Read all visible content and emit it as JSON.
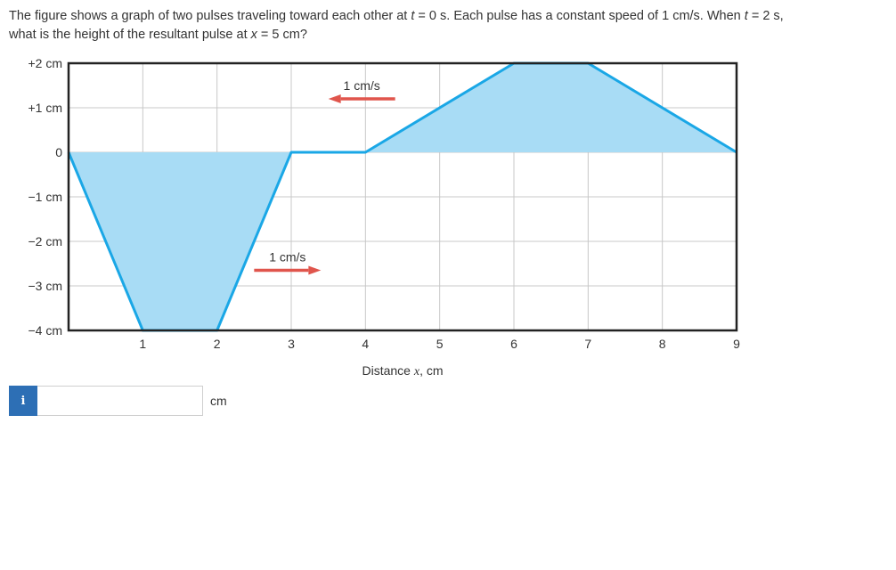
{
  "question": {
    "part1": "The figure shows a graph of two pulses traveling toward each other at ",
    "var_t1": "t",
    "part2": " = 0 s. Each pulse has a constant speed of 1 cm/s. When ",
    "var_t2": "t",
    "part3": " = 2 s,",
    "part4": "what is the height of the resultant pulse at ",
    "var_x": "x",
    "part5": " = 5 cm?"
  },
  "chart_data": {
    "type": "area",
    "xlim": [
      0,
      9
    ],
    "ylim": [
      -4,
      2
    ],
    "x_ticks": [
      1,
      2,
      3,
      4,
      5,
      6,
      7,
      8,
      9
    ],
    "y_tick_values": [
      2,
      1,
      0,
      -1,
      -2,
      -3,
      -4
    ],
    "y_tick_labels": [
      "+2 cm",
      "+1 cm",
      "0",
      "−1 cm",
      "−2 cm",
      "−3 cm",
      "−4 cm"
    ],
    "xlabel_main": "Distance ",
    "xlabel_var": "x",
    "xlabel_unit": ", cm",
    "grid": true,
    "series": [
      {
        "x": [
          0,
          1,
          2,
          3,
          4,
          6,
          7,
          9
        ],
        "y": [
          0,
          -4,
          -4,
          0,
          0,
          2,
          2,
          0
        ]
      }
    ],
    "annotations": [
      {
        "text": "1 cm/s",
        "direction": "left",
        "x_from": 4.4,
        "x_to": 3.5,
        "y": 1.2
      },
      {
        "text": "1 cm/s",
        "direction": "right",
        "x_from": 2.5,
        "x_to": 3.4,
        "y": -2.65
      }
    ],
    "colors": {
      "fill": "#a8dcf5",
      "line": "#1aa7e6",
      "arrow": "#e0554c",
      "grid": "#c8c8c8",
      "frame": "#222222"
    }
  },
  "answer": {
    "value": "",
    "unit": "cm",
    "info_icon": "i"
  }
}
